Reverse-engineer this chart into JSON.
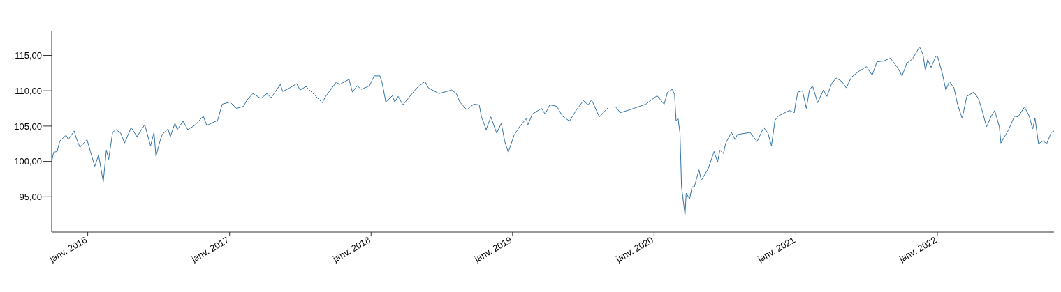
{
  "chart_data": {
    "type": "line",
    "x": [
      "2015-09-30",
      "2015-10-05",
      "2015-10-14",
      "2015-10-21",
      "2015-11-06",
      "2015-11-12",
      "2015-11-27",
      "2015-12-03",
      "2015-12-12",
      "2015-12-30",
      "2016-01-08",
      "2016-01-19",
      "2016-01-29",
      "2016-02-10",
      "2016-02-18",
      "2016-02-24",
      "2016-03-05",
      "2016-03-14",
      "2016-03-26",
      "2016-04-05",
      "2016-04-22",
      "2016-05-07",
      "2016-05-27",
      "2016-06-11",
      "2016-06-20",
      "2016-06-25",
      "2016-07-05",
      "2016-07-11",
      "2016-07-26",
      "2016-08-01",
      "2016-08-13",
      "2016-08-19",
      "2016-09-03",
      "2016-09-15",
      "2016-10-03",
      "2016-10-25",
      "2016-11-03",
      "2016-12-01",
      "2016-12-13",
      "2017-01-02",
      "2017-01-19",
      "2017-02-06",
      "2017-02-15",
      "2017-03-02",
      "2017-03-23",
      "2017-04-07",
      "2017-04-18",
      "2017-05-12",
      "2017-05-18",
      "2017-06-05",
      "2017-06-23",
      "2017-07-02",
      "2017-07-17",
      "2017-08-10",
      "2017-08-28",
      "2017-09-06",
      "2017-10-03",
      "2017-10-12",
      "2017-11-05",
      "2017-11-14",
      "2017-11-26",
      "2017-12-07",
      "2017-12-28",
      "2018-01-09",
      "2018-01-24",
      "2018-01-30",
      "2018-02-08",
      "2018-02-25",
      "2018-03-03",
      "2018-03-12",
      "2018-03-24",
      "2018-04-11",
      "2018-04-29",
      "2018-05-20",
      "2018-05-29",
      "2018-06-25",
      "2018-07-28",
      "2018-08-09",
      "2018-08-18",
      "2018-09-05",
      "2018-09-23",
      "2018-10-07",
      "2018-10-13",
      "2018-10-25",
      "2018-11-06",
      "2018-11-21",
      "2018-12-03",
      "2018-12-12",
      "2018-12-21",
      "2019-01-05",
      "2019-01-19",
      "2019-02-06",
      "2019-02-09",
      "2019-02-21",
      "2019-03-17",
      "2019-03-26",
      "2019-04-07",
      "2019-04-25",
      "2019-05-10",
      "2019-05-28",
      "2019-06-15",
      "2019-07-03",
      "2019-07-15",
      "2019-07-24",
      "2019-08-13",
      "2019-09-06",
      "2019-09-24",
      "2019-10-06",
      "2019-10-30",
      "2019-12-11",
      "2020-01-09",
      "2020-01-27",
      "2020-02-05",
      "2020-02-17",
      "2020-02-23",
      "2020-02-27",
      "2020-03-03",
      "2020-03-08",
      "2020-03-12",
      "2020-03-21",
      "2020-03-24",
      "2020-04-02",
      "2020-04-08",
      "2020-04-14",
      "2020-04-26",
      "2020-05-02",
      "2020-05-20",
      "2020-06-04",
      "2020-06-13",
      "2020-06-19",
      "2020-06-28",
      "2020-07-04",
      "2020-07-19",
      "2020-07-28",
      "2020-08-03",
      "2020-09-05",
      "2020-09-23",
      "2020-10-10",
      "2020-10-21",
      "2020-10-30",
      "2020-11-08",
      "2020-11-16",
      "2020-12-15",
      "2020-12-28",
      "2020-12-31",
      "2021-01-06",
      "2021-01-18",
      "2021-01-28",
      "2021-02-05",
      "2021-02-13",
      "2021-02-26",
      "2021-03-13",
      "2021-03-22",
      "2021-04-03",
      "2021-04-15",
      "2021-04-30",
      "2021-05-11",
      "2021-05-24",
      "2021-06-11",
      "2021-07-02",
      "2021-07-17",
      "2021-07-29",
      "2021-08-15",
      "2021-09-02",
      "2021-09-20",
      "2021-10-02",
      "2021-10-14",
      "2021-10-29",
      "2021-11-16",
      "2021-11-25",
      "2021-12-01",
      "2021-12-07",
      "2021-12-16",
      "2021-12-28",
      "2022-01-02",
      "2022-01-14",
      "2022-01-23",
      "2022-02-01",
      "2022-02-13",
      "2022-02-22",
      "2022-03-06",
      "2022-03-18",
      "2022-04-05",
      "2022-04-17",
      "2022-04-26",
      "2022-05-08",
      "2022-05-20",
      "2022-05-29",
      "2022-06-10",
      "2022-06-14",
      "2022-07-04",
      "2022-07-19",
      "2022-07-28",
      "2022-08-14",
      "2022-08-26",
      "2022-09-04",
      "2022-09-10",
      "2022-09-19",
      "2022-10-01",
      "2022-10-10",
      "2022-10-22",
      "2022-10-29"
    ],
    "series": [
      {
        "color": "#3273a8",
        "values": [
          100.0,
          101.3,
          101.4,
          102.9,
          103.7,
          103.1,
          104.3,
          103.2,
          102.0,
          103.1,
          101.4,
          99.3,
          100.9,
          97.1,
          101.6,
          100.3,
          104.1,
          104.5,
          104.0,
          102.6,
          104.8,
          103.5,
          105.2,
          102.2,
          104.1,
          100.7,
          102.8,
          103.8,
          104.6,
          103.5,
          105.4,
          104.5,
          105.7,
          104.5,
          105.1,
          106.4,
          105.1,
          105.8,
          108.1,
          108.4,
          107.5,
          107.8,
          108.7,
          109.6,
          108.9,
          109.6,
          109.0,
          110.9,
          109.9,
          110.4,
          111.0,
          110.1,
          110.6,
          109.3,
          108.3,
          109.2,
          111.2,
          110.9,
          111.6,
          109.8,
          110.7,
          110.2,
          110.7,
          112.1,
          112.1,
          111.0,
          108.4,
          109.3,
          108.4,
          109.2,
          108.0,
          109.2,
          110.4,
          111.3,
          110.4,
          109.6,
          110.1,
          109.6,
          108.4,
          107.3,
          108.1,
          108.0,
          106.3,
          104.5,
          106.3,
          104.0,
          105.4,
          102.8,
          101.3,
          103.7,
          104.9,
          106.1,
          105.1,
          106.7,
          107.5,
          106.7,
          108.0,
          107.8,
          106.4,
          105.7,
          107.3,
          108.6,
          108.0,
          108.7,
          106.3,
          107.7,
          107.7,
          106.9,
          107.3,
          108.1,
          109.3,
          108.1,
          109.8,
          110.2,
          109.5,
          105.7,
          106.1,
          104.0,
          96.4,
          92.4,
          95.5,
          94.7,
          96.4,
          96.4,
          98.8,
          97.3,
          99.0,
          101.4,
          99.9,
          101.6,
          101.1,
          102.6,
          104.1,
          103.1,
          103.8,
          104.1,
          102.8,
          104.8,
          104.0,
          102.2,
          105.8,
          106.4,
          107.2,
          106.9,
          108.1,
          109.8,
          110.0,
          107.5,
          110.1,
          110.7,
          108.3,
          110.1,
          109.2,
          111.0,
          111.8,
          111.3,
          110.4,
          111.9,
          112.7,
          113.4,
          112.2,
          114.1,
          114.2,
          114.6,
          113.3,
          112.1,
          113.9,
          114.5,
          116.2,
          115.1,
          112.9,
          114.4,
          113.3,
          114.9,
          114.8,
          112.4,
          110.1,
          111.3,
          110.4,
          108.1,
          106.1,
          109.2,
          109.8,
          108.9,
          107.3,
          104.9,
          106.4,
          107.2,
          104.9,
          102.6,
          104.5,
          106.4,
          106.3,
          107.7,
          106.4,
          104.6,
          106.1,
          102.5,
          102.9,
          102.5,
          104.1,
          104.3
        ]
      }
    ],
    "xlim": [
      "2015-09-30",
      "2022-10-29"
    ],
    "xticks": [
      {
        "value": "2016-01-01",
        "label": "janv. 2016"
      },
      {
        "value": "2017-01-01",
        "label": "janv. 2017"
      },
      {
        "value": "2018-01-01",
        "label": "janv. 2018"
      },
      {
        "value": "2019-01-01",
        "label": "janv. 2019"
      },
      {
        "value": "2020-01-01",
        "label": "janv. 2020"
      },
      {
        "value": "2021-01-01",
        "label": "janv. 2021"
      },
      {
        "value": "2022-01-01",
        "label": "janv. 2022"
      }
    ],
    "ylim": [
      90,
      118.5
    ],
    "yticks": [
      {
        "value": 95,
        "label": "95,00"
      },
      {
        "value": 100,
        "label": "100,00"
      },
      {
        "value": 105,
        "label": "105,00"
      },
      {
        "value": 110,
        "label": "110,00"
      },
      {
        "value": 115,
        "label": "115,00"
      }
    ],
    "grid": false,
    "marker": "none",
    "line_style": "solid"
  }
}
